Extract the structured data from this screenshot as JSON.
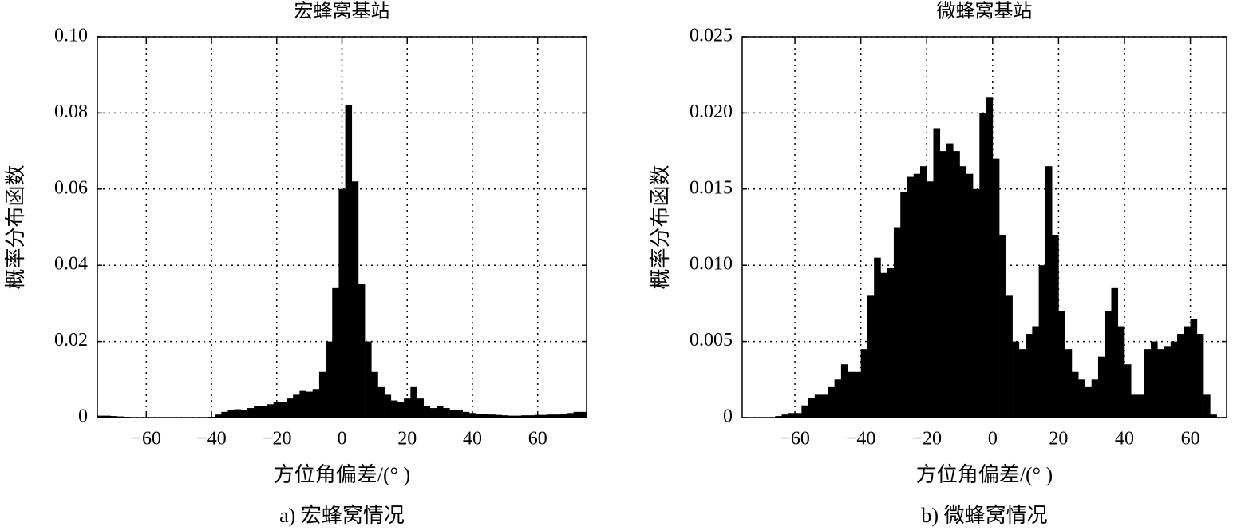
{
  "chart_data": [
    {
      "type": "histogram",
      "title": "宏蜂窝基站",
      "x_label": "方位角偏差/(° )",
      "y_label": "概率分布函数",
      "caption": "a) 宏蜂窝情况",
      "color": "#000000",
      "grid": true,
      "bins": [
        -75,
        -73,
        -71,
        -69,
        -67,
        -65,
        -63,
        -61,
        -59,
        -57,
        -55,
        -53,
        -51,
        -49,
        -47,
        -45,
        -43,
        -41,
        -39,
        -37,
        -35,
        -33,
        -31,
        -29,
        -27,
        -25,
        -23,
        -21,
        -19,
        -17,
        -15,
        -13,
        -11,
        -9,
        -7,
        -5,
        -3,
        -1,
        1,
        3,
        5,
        7,
        9,
        11,
        13,
        15,
        17,
        19,
        21,
        23,
        25,
        27,
        29,
        31,
        33,
        35,
        37,
        39,
        41,
        43,
        45,
        47,
        49,
        51,
        53,
        55,
        57,
        59,
        61,
        63,
        65,
        67,
        69,
        71,
        73,
        75
      ],
      "values": [
        0.0005,
        0.0005,
        0.0004,
        0.0003,
        0.0002,
        0,
        0,
        0,
        0,
        0,
        0,
        0,
        0,
        0,
        0,
        0,
        0,
        0.0002,
        0.0008,
        0.0015,
        0.002,
        0.0022,
        0.002,
        0.0025,
        0.003,
        0.003,
        0.0035,
        0.004,
        0.004,
        0.005,
        0.006,
        0.007,
        0.0068,
        0.0075,
        0.012,
        0.02,
        0.034,
        0.06,
        0.082,
        0.062,
        0.035,
        0.02,
        0.012,
        0.008,
        0.006,
        0.0045,
        0.004,
        0.005,
        0.008,
        0.005,
        0.003,
        0.0025,
        0.003,
        0.0025,
        0.002,
        0.002,
        0.0015,
        0.0012,
        0.001,
        0.001,
        0.0008,
        0.0007,
        0.0006,
        0.0005,
        0.0005,
        0.0006,
        0.0006,
        0.0007,
        0.0007,
        0.0008,
        0.0008,
        0.001,
        0.0012,
        0.0015,
        0.0015
      ],
      "xlim": [
        -75,
        75
      ],
      "xticks": [
        {
          "value": -60,
          "label": "−60"
        },
        {
          "value": -40,
          "label": "−40"
        },
        {
          "value": -20,
          "label": "−20"
        },
        0,
        20,
        40,
        60
      ],
      "ylim": [
        0,
        0.1
      ],
      "yticks": [
        0,
        0.02,
        0.04,
        0.06,
        0.08,
        {
          "value": 0.1,
          "label": "0.10"
        }
      ]
    },
    {
      "type": "histogram",
      "title": "微蜂窝基站",
      "x_label": "方位角偏差/(° )",
      "y_label": "概率分布函数",
      "caption": "b) 微蜂窝情况",
      "color": "#000000",
      "grid": true,
      "bins": [
        -76,
        -74,
        -72,
        -70,
        -68,
        -66,
        -64,
        -62,
        -60,
        -58,
        -56,
        -54,
        -52,
        -50,
        -48,
        -46,
        -44,
        -42,
        -40,
        -38,
        -36,
        -34,
        -32,
        -30,
        -28,
        -26,
        -24,
        -22,
        -20,
        -18,
        -16,
        -14,
        -12,
        -10,
        -8,
        -6,
        -4,
        -2,
        0,
        2,
        4,
        6,
        8,
        10,
        12,
        14,
        16,
        18,
        20,
        22,
        24,
        26,
        28,
        30,
        32,
        34,
        36,
        38,
        40,
        42,
        44,
        46,
        48,
        50,
        52,
        54,
        56,
        58,
        60,
        62,
        64,
        66,
        68,
        70
      ],
      "values": [
        0,
        0,
        0,
        0,
        0,
        0.0001,
        0.0002,
        0.0003,
        0.0003,
        0.0008,
        0.0013,
        0.0015,
        0.0015,
        0.002,
        0.0025,
        0.0035,
        0.003,
        0.003,
        0.0045,
        0.008,
        0.0105,
        0.0095,
        0.0098,
        0.0125,
        0.0148,
        0.0158,
        0.016,
        0.0165,
        0.0155,
        0.019,
        0.0175,
        0.018,
        0.0175,
        0.0165,
        0.016,
        0.015,
        0.02,
        0.021,
        0.017,
        0.012,
        0.008,
        0.005,
        0.0045,
        0.0055,
        0.006,
        0.01,
        0.0165,
        0.012,
        0.007,
        0.0045,
        0.003,
        0.0025,
        0.002,
        0.0025,
        0.004,
        0.007,
        0.0085,
        0.006,
        0.0035,
        0.0015,
        0.0015,
        0.0045,
        0.005,
        0.0045,
        0.0047,
        0.005,
        0.0055,
        0.006,
        0.0065,
        0.0055,
        0.0015,
        0.0002,
        0
      ],
      "xlim": [
        -76,
        71
      ],
      "xticks": [
        {
          "value": -60,
          "label": "−60"
        },
        {
          "value": -40,
          "label": "−40"
        },
        {
          "value": -20,
          "label": "−20"
        },
        0,
        20,
        40,
        60
      ],
      "ylim": [
        0,
        0.025
      ],
      "yticks": [
        0,
        0.005,
        {
          "value": 0.01,
          "label": "0.010"
        },
        0.015,
        {
          "value": 0.02,
          "label": "0.020"
        },
        0.025
      ]
    }
  ]
}
